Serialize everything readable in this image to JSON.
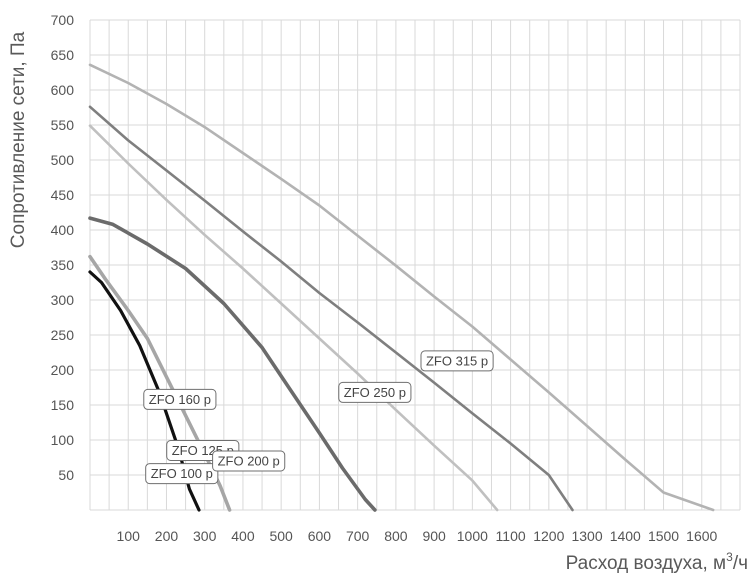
{
  "chart_data": {
    "type": "line",
    "title": "",
    "xlabel": "Расход воздуха, м",
    "xlabel_sup": "3",
    "xlabel_suffix": "/ч",
    "ylabel": "Сопротивление сети, Па",
    "xlim": [
      0,
      1700
    ],
    "ylim": [
      0,
      700
    ],
    "x_ticks": [
      "100",
      "200",
      "300",
      "400",
      "500",
      "600",
      "700",
      "800",
      "900",
      "1000",
      "1100",
      "1200",
      "1300",
      "1400",
      "1500",
      "1600"
    ],
    "y_ticks": [
      "50",
      "100",
      "150",
      "200",
      "250",
      "300",
      "350",
      "400",
      "450",
      "500",
      "550",
      "600",
      "650",
      "700"
    ],
    "grid": true,
    "series": [
      {
        "name": "ZFO 100 р",
        "color": "#111111",
        "width": 3.2,
        "label_at": [
          240,
          52
        ],
        "points": [
          [
            0,
            340
          ],
          [
            30,
            325
          ],
          [
            80,
            285
          ],
          [
            130,
            235
          ],
          [
            180,
            170
          ],
          [
            230,
            90
          ],
          [
            260,
            30
          ],
          [
            285,
            0
          ]
        ]
      },
      {
        "name": "ZFO 125 р",
        "color": "#a6a6a6",
        "width": 3.6,
        "label_at": [
          295,
          85
        ],
        "points": [
          [
            0,
            362
          ],
          [
            40,
            330
          ],
          [
            100,
            285
          ],
          [
            150,
            245
          ],
          [
            200,
            190
          ],
          [
            250,
            135
          ],
          [
            300,
            80
          ],
          [
            340,
            35
          ],
          [
            365,
            0
          ]
        ]
      },
      {
        "name": "ZFO 160 р",
        "color": "#6b6b6b",
        "width": 3.6,
        "label_at": [
          235,
          158
        ],
        "points": [
          [
            0,
            417
          ],
          [
            60,
            408
          ],
          [
            150,
            380
          ],
          [
            250,
            345
          ],
          [
            350,
            295
          ],
          [
            450,
            232
          ],
          [
            520,
            175
          ],
          [
            600,
            110
          ],
          [
            660,
            60
          ],
          [
            720,
            15
          ],
          [
            745,
            0
          ]
        ]
      },
      {
        "name": "ZFO 200 р",
        "color": "#c0c0c0",
        "width": 2.6,
        "label_at": [
          415,
          70
        ],
        "points": [
          [
            0,
            549
          ],
          [
            100,
            495
          ],
          [
            200,
            443
          ],
          [
            300,
            393
          ],
          [
            400,
            345
          ],
          [
            500,
            295
          ],
          [
            600,
            245
          ],
          [
            700,
            195
          ],
          [
            800,
            143
          ],
          [
            900,
            92
          ],
          [
            1000,
            42
          ],
          [
            1065,
            0
          ]
        ]
      },
      {
        "name": "ZFO 250 р",
        "color": "#7f7f7f",
        "width": 2.6,
        "label_at": [
          745,
          168
        ],
        "points": [
          [
            0,
            576
          ],
          [
            100,
            528
          ],
          [
            200,
            485
          ],
          [
            300,
            442
          ],
          [
            400,
            398
          ],
          [
            500,
            355
          ],
          [
            600,
            310
          ],
          [
            700,
            268
          ],
          [
            800,
            225
          ],
          [
            900,
            182
          ],
          [
            1000,
            138
          ],
          [
            1100,
            95
          ],
          [
            1200,
            50
          ],
          [
            1262,
            0
          ]
        ]
      },
      {
        "name": "ZFO 315 р",
        "color": "#b3b3b3",
        "width": 2.6,
        "label_at": [
          960,
          213
        ],
        "points": [
          [
            0,
            636
          ],
          [
            100,
            610
          ],
          [
            200,
            580
          ],
          [
            300,
            547
          ],
          [
            400,
            510
          ],
          [
            500,
            473
          ],
          [
            600,
            435
          ],
          [
            700,
            392
          ],
          [
            800,
            349
          ],
          [
            900,
            305
          ],
          [
            1000,
            262
          ],
          [
            1100,
            215
          ],
          [
            1200,
            168
          ],
          [
            1300,
            120
          ],
          [
            1400,
            72
          ],
          [
            1500,
            25
          ],
          [
            1630,
            0
          ]
        ]
      }
    ]
  }
}
